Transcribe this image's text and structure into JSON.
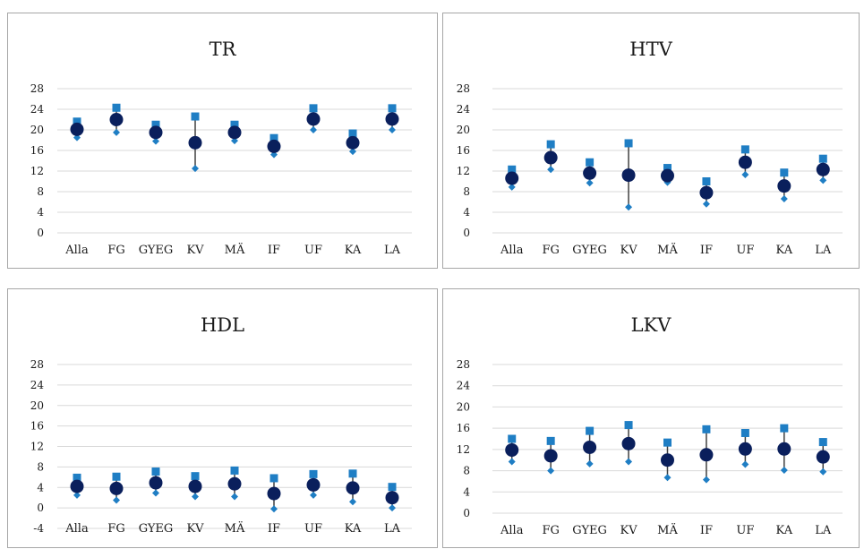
{
  "chart_data": [
    {
      "type": "scatter",
      "title": "TR",
      "categories": [
        "Alla",
        "FG",
        "GYEG",
        "KV",
        "MÄ",
        "IF",
        "UF",
        "KA",
        "LA"
      ],
      "yticks": [
        0,
        4,
        8,
        12,
        16,
        20,
        24,
        28
      ],
      "ylim": [
        0,
        28
      ],
      "series": [
        {
          "marker": "square",
          "color": "#1f7ec4",
          "values": [
            21.6,
            24.3,
            21.0,
            22.6,
            21.0,
            18.4,
            24.2,
            19.3,
            24.2
          ]
        },
        {
          "marker": "circle",
          "color": "#0a1f5c",
          "values": [
            20.1,
            22.0,
            19.5,
            17.5,
            19.5,
            16.8,
            22.1,
            17.5,
            22.1
          ]
        },
        {
          "marker": "diamond",
          "color": "#1f7ec4",
          "values": [
            18.5,
            19.5,
            17.8,
            12.5,
            17.9,
            15.2,
            20.0,
            15.8,
            20.0
          ]
        }
      ]
    },
    {
      "type": "scatter",
      "title": "HTV",
      "categories": [
        "Alla",
        "FG",
        "GYEG",
        "KV",
        "MÄ",
        "IF",
        "UF",
        "KA",
        "LA"
      ],
      "yticks": [
        0,
        4,
        8,
        12,
        16,
        20,
        24,
        28
      ],
      "ylim": [
        0,
        28
      ],
      "series": [
        {
          "marker": "square",
          "color": "#1f7ec4",
          "values": [
            12.3,
            17.2,
            13.7,
            17.4,
            12.6,
            10.0,
            16.2,
            11.7,
            14.4
          ]
        },
        {
          "marker": "circle",
          "color": "#0a1f5c",
          "values": [
            10.6,
            14.6,
            11.6,
            11.2,
            11.1,
            7.8,
            13.7,
            9.1,
            12.3
          ]
        },
        {
          "marker": "diamond",
          "color": "#1f7ec4",
          "values": [
            8.9,
            12.3,
            9.7,
            5.0,
            9.8,
            5.6,
            11.3,
            6.6,
            10.2
          ]
        }
      ]
    },
    {
      "type": "scatter",
      "title": "HDL",
      "categories": [
        "Alla",
        "FG",
        "GYEG",
        "KV",
        "MÄ",
        "IF",
        "UF",
        "KA",
        "LA"
      ],
      "yticks": [
        -4,
        0,
        4,
        8,
        12,
        16,
        20,
        24,
        28
      ],
      "ylim": [
        -4,
        28
      ],
      "series": [
        {
          "marker": "square",
          "color": "#1f7ec4",
          "values": [
            5.9,
            6.1,
            7.1,
            6.2,
            7.3,
            5.8,
            6.6,
            6.7,
            4.1
          ]
        },
        {
          "marker": "circle",
          "color": "#0a1f5c",
          "values": [
            4.2,
            3.8,
            4.9,
            4.2,
            4.7,
            2.8,
            4.5,
            3.9,
            2.0
          ]
        },
        {
          "marker": "diamond",
          "color": "#1f7ec4",
          "values": [
            2.5,
            1.5,
            2.9,
            2.2,
            2.2,
            -0.2,
            2.5,
            1.2,
            0.0
          ]
        }
      ]
    },
    {
      "type": "scatter",
      "title": "LKV",
      "categories": [
        "Alla",
        "FG",
        "GYEG",
        "KV",
        "MÄ",
        "IF",
        "UF",
        "KA",
        "LA"
      ],
      "yticks": [
        0,
        4,
        8,
        12,
        16,
        20,
        24,
        28
      ],
      "ylim": [
        0,
        28
      ],
      "series": [
        {
          "marker": "square",
          "color": "#1f7ec4",
          "values": [
            14.0,
            13.6,
            15.5,
            16.6,
            13.3,
            15.8,
            15.1,
            16.0,
            13.4
          ]
        },
        {
          "marker": "circle",
          "color": "#0a1f5c",
          "values": [
            11.9,
            10.8,
            12.4,
            13.1,
            10.0,
            11.0,
            12.1,
            12.1,
            10.6
          ]
        },
        {
          "marker": "diamond",
          "color": "#1f7ec4",
          "values": [
            9.7,
            8.0,
            9.3,
            9.7,
            6.7,
            6.3,
            9.2,
            8.1,
            7.8
          ]
        }
      ]
    }
  ]
}
